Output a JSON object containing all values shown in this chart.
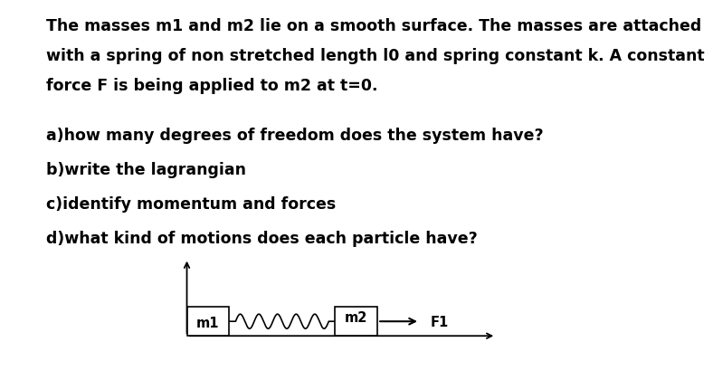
{
  "background_color": "#ffffff",
  "text_color": "#000000",
  "title_lines": [
    "The masses m1 and m2 lie on a smooth surface. The masses are attached",
    "with a spring of non stretched length l0 and spring constant k. A constant",
    "force F is being applied to m2 at t=0."
  ],
  "questions": [
    "a)how many degrees of freedom does the system have?",
    "b)write the lagrangian",
    "c)identify momentum and forces",
    "d)what kind of motions does each particle have?"
  ],
  "m1_label": "m1",
  "m2_label": "m2",
  "F1_label": "F1",
  "font_size_text": 12.5,
  "font_size_labels": 10.5
}
